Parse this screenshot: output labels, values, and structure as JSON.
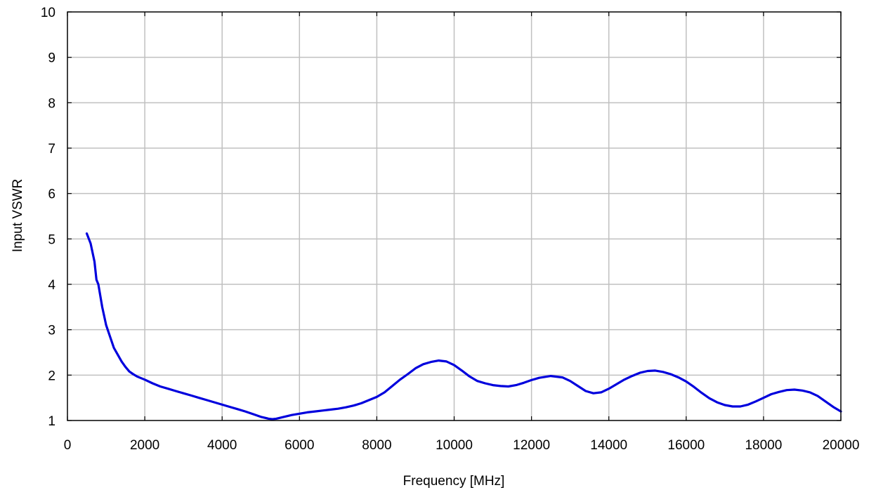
{
  "chart_data": {
    "type": "line",
    "title": "",
    "xlabel": "Frequency [MHz]",
    "ylabel": "Input VSWR",
    "xlim": [
      0,
      20000
    ],
    "ylim": [
      1,
      10
    ],
    "xticks": [
      0,
      2000,
      4000,
      6000,
      8000,
      10000,
      12000,
      14000,
      16000,
      18000,
      20000
    ],
    "yticks": [
      1,
      2,
      3,
      4,
      5,
      6,
      7,
      8,
      9,
      10
    ],
    "grid": true,
    "legend": "none",
    "series": [
      {
        "color": "#0000dd",
        "x": [
          500,
          600,
          700,
          750,
          800,
          900,
          1000,
          1100,
          1200,
          1300,
          1400,
          1500,
          1600,
          1700,
          1800,
          2000,
          2200,
          2400,
          2600,
          2800,
          3000,
          3200,
          3400,
          3600,
          3800,
          4000,
          4200,
          4400,
          4600,
          4800,
          5000,
          5200,
          5300,
          5400,
          5600,
          5800,
          6000,
          6200,
          6400,
          6600,
          6800,
          7000,
          7200,
          7400,
          7600,
          7800,
          8000,
          8200,
          8400,
          8600,
          8800,
          9000,
          9200,
          9400,
          9600,
          9800,
          10000,
          10200,
          10400,
          10600,
          10800,
          11000,
          11200,
          11400,
          11600,
          11800,
          12000,
          12200,
          12500,
          12800,
          13000,
          13200,
          13400,
          13600,
          13800,
          14000,
          14200,
          14400,
          14600,
          14800,
          15000,
          15200,
          15400,
          15600,
          15800,
          16000,
          16200,
          16400,
          16600,
          16800,
          17000,
          17200,
          17400,
          17600,
          17800,
          18000,
          18200,
          18400,
          18600,
          18800,
          19000,
          19200,
          19400,
          19600,
          19800,
          20000
        ],
        "y": [
          5.12,
          4.9,
          4.5,
          4.1,
          4.0,
          3.5,
          3.1,
          2.85,
          2.6,
          2.45,
          2.3,
          2.18,
          2.08,
          2.02,
          1.97,
          1.9,
          1.82,
          1.75,
          1.7,
          1.65,
          1.6,
          1.55,
          1.5,
          1.45,
          1.4,
          1.35,
          1.3,
          1.25,
          1.2,
          1.14,
          1.08,
          1.04,
          1.03,
          1.04,
          1.08,
          1.12,
          1.15,
          1.18,
          1.2,
          1.22,
          1.24,
          1.26,
          1.29,
          1.33,
          1.38,
          1.45,
          1.52,
          1.62,
          1.76,
          1.9,
          2.02,
          2.15,
          2.24,
          2.29,
          2.32,
          2.3,
          2.22,
          2.1,
          1.97,
          1.87,
          1.82,
          1.78,
          1.76,
          1.75,
          1.78,
          1.83,
          1.89,
          1.94,
          1.98,
          1.95,
          1.87,
          1.76,
          1.65,
          1.6,
          1.62,
          1.7,
          1.8,
          1.9,
          1.98,
          2.05,
          2.09,
          2.1,
          2.07,
          2.02,
          1.95,
          1.86,
          1.74,
          1.61,
          1.49,
          1.4,
          1.34,
          1.31,
          1.31,
          1.35,
          1.42,
          1.5,
          1.58,
          1.63,
          1.67,
          1.68,
          1.66,
          1.62,
          1.54,
          1.42,
          1.3,
          1.2
        ]
      }
    ]
  }
}
